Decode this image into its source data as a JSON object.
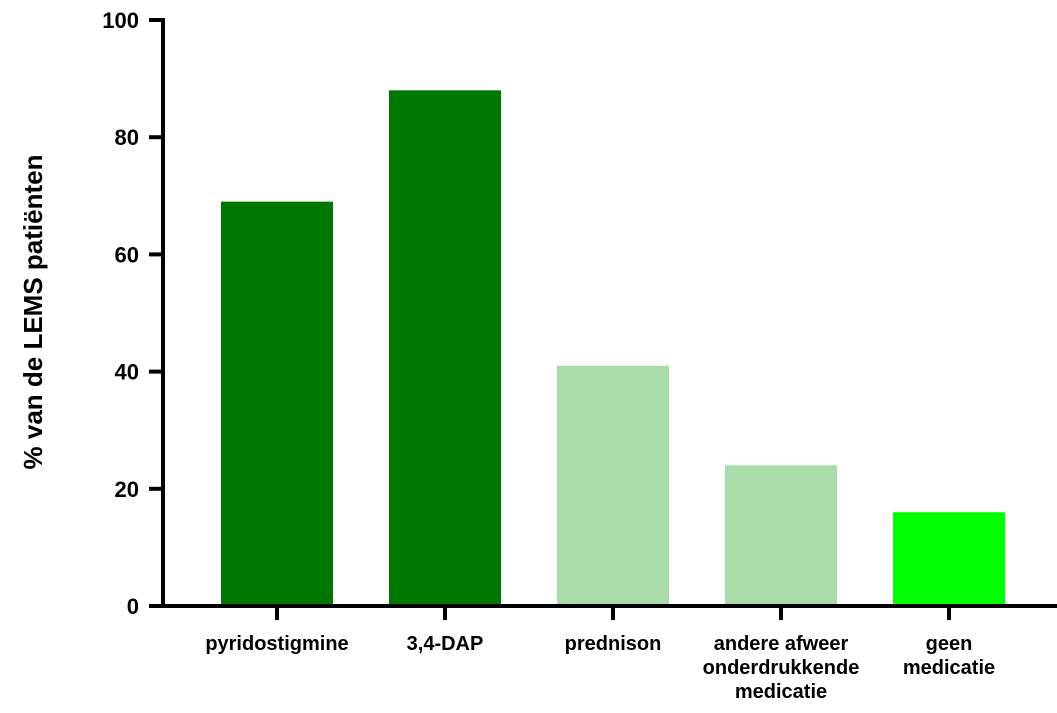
{
  "chart_data": {
    "type": "bar",
    "categories": [
      [
        "pyridostigmine"
      ],
      [
        "3,4-DAP"
      ],
      [
        "prednison"
      ],
      [
        "andere afweer",
        "onderdrukkende",
        "medicatie"
      ],
      [
        "geen",
        "medicatie"
      ]
    ],
    "values": [
      69,
      88,
      41,
      24,
      16
    ],
    "bar_colors": [
      "#007800",
      "#007800",
      "#aadcaa",
      "#aadcaa",
      "#00ff00"
    ],
    "ylabel": "% van de LEMS patiënten",
    "xlabel": "",
    "ylim": [
      0,
      100
    ],
    "yticks": [
      0,
      20,
      40,
      60,
      80,
      100
    ],
    "grid": false,
    "legend": "none"
  }
}
